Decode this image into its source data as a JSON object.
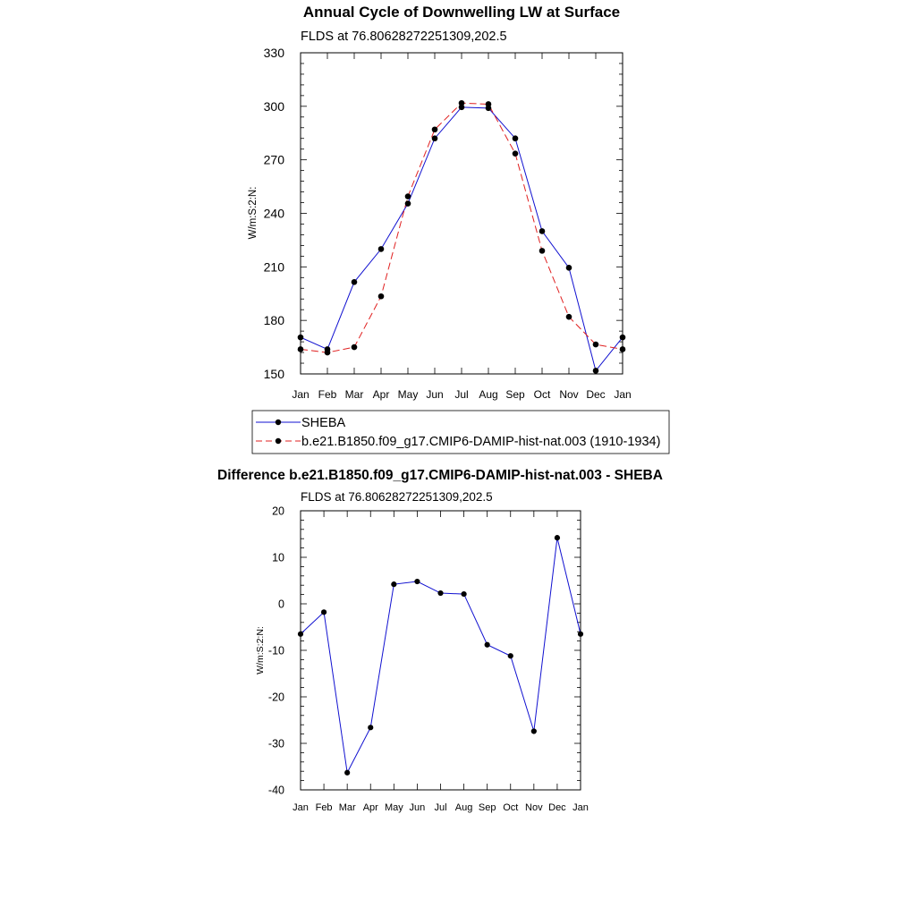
{
  "colors": {
    "sheba": "#1010d0",
    "model": "#e02020",
    "diff": "#1010d0",
    "marker": "#000000"
  },
  "chart_data": [
    {
      "type": "line",
      "title": "Annual Cycle of Downwelling LW at Surface",
      "subtitle": "FLDS at 76.80628272251309,202.5",
      "xlabel": "",
      "ylabel": "W/m:S:2:N:",
      "categories": [
        "Jan",
        "Feb",
        "Mar",
        "Apr",
        "May",
        "Jun",
        "Jul",
        "Aug",
        "Sep",
        "Oct",
        "Nov",
        "Dec",
        "Jan"
      ],
      "ylim": [
        150,
        330
      ],
      "yticks": [
        150,
        180,
        210,
        240,
        270,
        300,
        330
      ],
      "legend_position": "bottom",
      "series": [
        {
          "name": "SHEBA",
          "style": "solid",
          "values": [
            170.5,
            163.8,
            201.5,
            220.0,
            245.5,
            282.0,
            299.5,
            299.0,
            282.0,
            230.0,
            209.5,
            151.8,
            170.5
          ]
        },
        {
          "name": "b.e21.B1850.f09_g17.CMIP6-DAMIP-hist-nat.003 (1910-1934)",
          "style": "dashed",
          "values": [
            163.8,
            162.0,
            165.0,
            193.5,
            249.5,
            287.0,
            301.8,
            301.2,
            273.5,
            219.0,
            182.0,
            166.5,
            163.8
          ]
        }
      ]
    },
    {
      "type": "line",
      "title": "Difference b.e21.B1850.f09_g17.CMIP6-DAMIP-hist-nat.003 - SHEBA",
      "subtitle": "FLDS at 76.80628272251309,202.5",
      "xlabel": "",
      "ylabel": "W/m:S:2:N:",
      "categories": [
        "Jan",
        "Feb",
        "Mar",
        "Apr",
        "May",
        "Jun",
        "Jul",
        "Aug",
        "Sep",
        "Oct",
        "Nov",
        "Dec",
        "Jan"
      ],
      "ylim": [
        -40,
        20
      ],
      "yticks": [
        -40,
        -30,
        -20,
        -10,
        0,
        10,
        20
      ],
      "series": [
        {
          "values": [
            -6.5,
            -1.8,
            -36.3,
            -26.6,
            4.2,
            4.8,
            2.3,
            2.1,
            -8.8,
            -11.2,
            -27.4,
            14.2,
            -6.5
          ]
        }
      ]
    }
  ]
}
